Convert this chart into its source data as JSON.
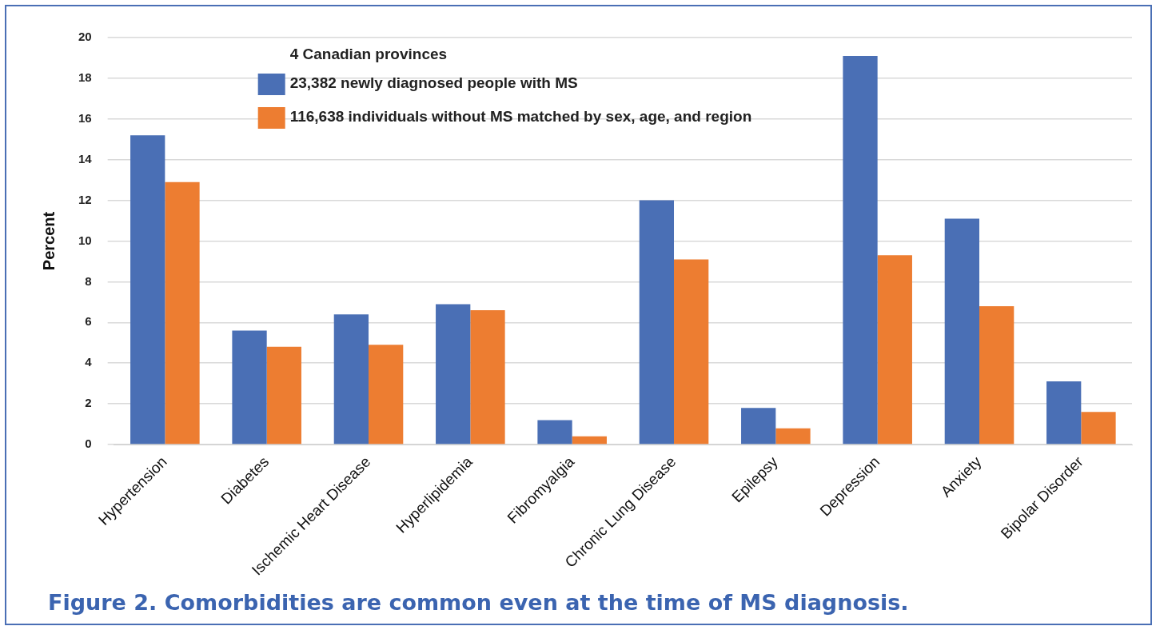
{
  "chart_data": {
    "type": "bar",
    "ylabel": "Percent",
    "categories": [
      "Hypertension",
      "Diabetes",
      "Ischemic Heart Disease",
      "Hyperlipidemia",
      "Fibromyalgia",
      "Chronic Lung Disease",
      "Epilepsy",
      "Depression",
      "Anxiety",
      "Bipolar Disorder"
    ],
    "series": [
      {
        "name": "23,382 newly diagnosed people with MS",
        "color": "#4a6fb5",
        "values": [
          15.2,
          5.6,
          6.4,
          6.9,
          1.2,
          12.0,
          1.8,
          19.1,
          11.1,
          3.1
        ]
      },
      {
        "name": "116,638 individuals without MS matched by sex, age, and region",
        "color": "#ed7d31",
        "values": [
          12.9,
          4.8,
          4.9,
          6.6,
          0.4,
          9.1,
          0.8,
          9.3,
          6.8,
          1.6
        ]
      }
    ],
    "legend_title": "4 Canadian provinces",
    "legend": "top left",
    "ylim": [
      0,
      20
    ],
    "yticks": [
      0,
      2,
      4,
      6,
      8,
      10,
      12,
      14,
      16,
      18,
      20
    ],
    "grid": "y",
    "annotations": [
      "Figure 2. Comorbidities are common even at the time of MS diagnosis."
    ]
  }
}
